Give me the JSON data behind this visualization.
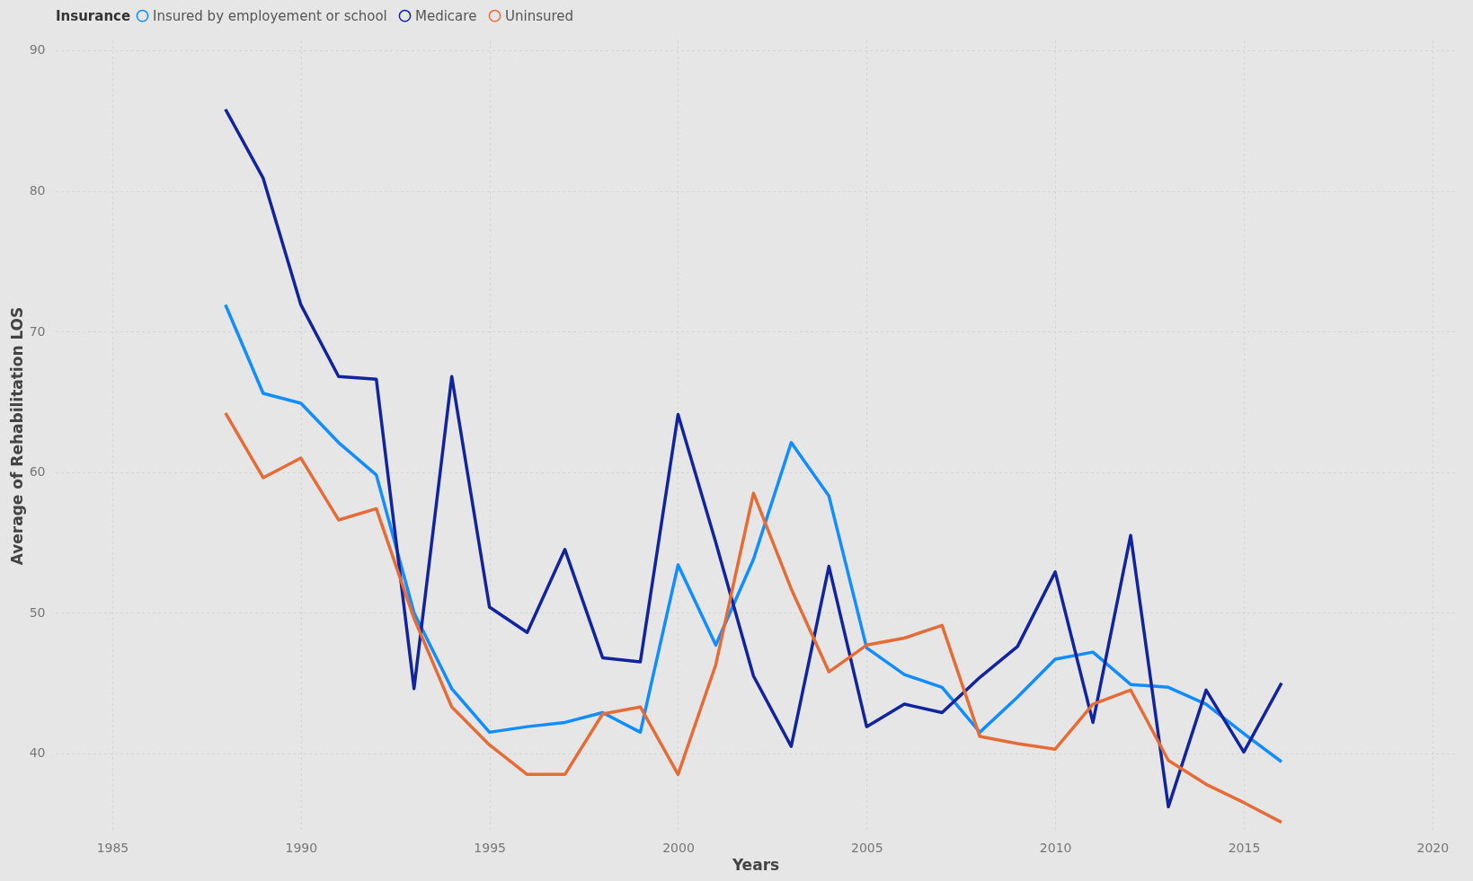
{
  "chart_data": {
    "type": "line",
    "xlabel": "Years",
    "ylabel": "Average of Rehabilitation LOS",
    "legend_title": "Insurance",
    "legend": "top left",
    "grid": true,
    "line_style": "solid",
    "marker": "none",
    "x": [
      1988,
      1989,
      1990,
      1991,
      1992,
      1993,
      1994,
      1995,
      1996,
      1997,
      1998,
      1999,
      2000,
      2001,
      2002,
      2003,
      2004,
      2005,
      2006,
      2007,
      2008,
      2009,
      2010,
      2011,
      2012,
      2013,
      2014,
      2015,
      2016
    ],
    "xlim": [
      1983.5,
      2020.6
    ],
    "xticks": [
      1985,
      1990,
      1995,
      2000,
      2005,
      2010,
      2015,
      2020
    ],
    "ylim": [
      34.5,
      90.7
    ],
    "yticks": [
      40,
      50,
      60,
      70,
      80,
      90
    ],
    "series": [
      {
        "name": "Insured by employement or school",
        "color": "#118dff",
        "values": [
          71.9,
          65.6,
          64.9,
          62.1,
          59.8,
          50.0,
          44.6,
          41.5,
          41.9,
          42.2,
          42.9,
          41.5,
          53.4,
          47.7,
          53.8,
          62.1,
          58.3,
          47.5,
          45.6,
          44.7,
          41.5,
          44.0,
          46.7,
          47.2,
          44.9,
          44.7,
          43.5,
          41.4,
          39.4
        ]
      },
      {
        "name": "Medicare",
        "color": "#12239e",
        "values": [
          85.8,
          80.9,
          71.9,
          66.8,
          66.6,
          44.6,
          66.8,
          50.4,
          48.6,
          54.5,
          46.8,
          46.5,
          64.1,
          55.0,
          45.5,
          40.5,
          53.3,
          41.9,
          43.5,
          42.9,
          45.4,
          47.6,
          52.9,
          42.2,
          55.5,
          36.2,
          44.5,
          40.1,
          45.0
        ]
      },
      {
        "name": "Uninsured",
        "color": "#e66c37",
        "values": [
          64.2,
          59.6,
          61.0,
          56.6,
          57.4,
          49.6,
          43.3,
          40.6,
          38.5,
          38.5,
          42.8,
          43.3,
          38.5,
          46.3,
          58.5,
          51.7,
          45.8,
          47.7,
          48.2,
          49.1,
          41.2,
          40.7,
          40.3,
          43.5,
          44.5,
          39.5,
          37.8,
          36.5,
          35.1
        ]
      }
    ]
  }
}
